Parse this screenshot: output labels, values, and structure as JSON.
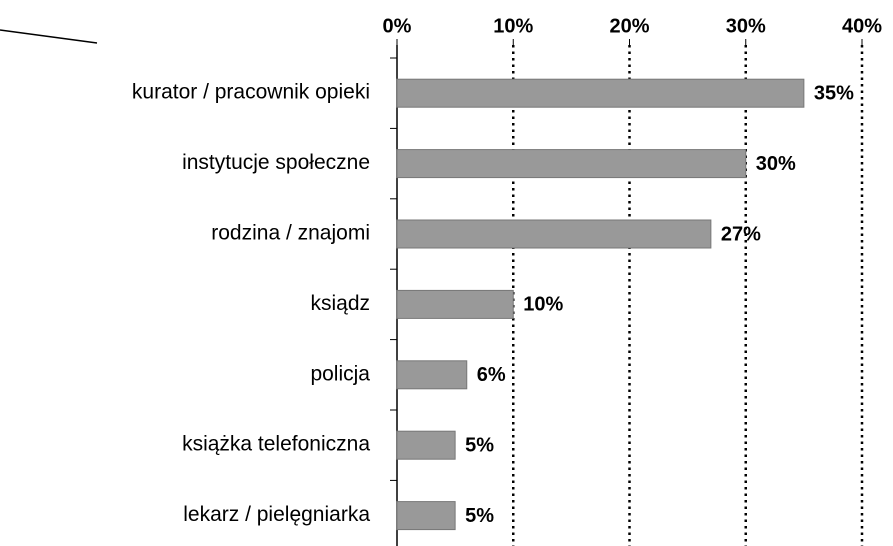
{
  "chart_data": {
    "type": "hbar",
    "categories": [
      "kurator / pracownik opieki",
      "instytucje społeczne",
      "rodzina / znajomi",
      "ksiądz",
      "policja",
      "książka telefoniczna",
      "lekarz / pielęgniarka"
    ],
    "values": [
      35,
      30,
      27,
      10,
      6,
      5,
      5
    ],
    "value_labels": [
      "35%",
      "30%",
      "27%",
      "10%",
      "6%",
      "5%",
      "5%"
    ],
    "color": "#999999",
    "xlim": [
      0,
      40
    ],
    "xticks": [
      {
        "value": 0,
        "label": "0%"
      },
      {
        "value": 10,
        "label": "10%"
      },
      {
        "value": 20,
        "label": "20%"
      },
      {
        "value": 30,
        "label": "30%"
      },
      {
        "value": 40,
        "label": "40%"
      }
    ],
    "grid": true
  }
}
